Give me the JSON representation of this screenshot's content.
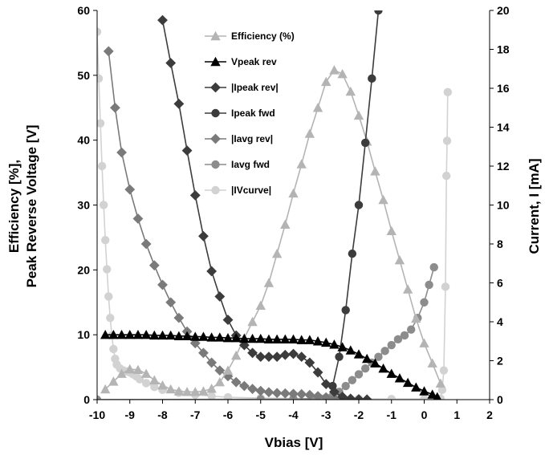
{
  "chart_data": {
    "type": "line",
    "xlabel": "Vbias [V]",
    "ylabel_left_line1": "Efficiency [%],",
    "ylabel_left_line2": "Peak Reverse Voltage [V]",
    "ylabel_right": "Current, I [mA]",
    "xlim": [
      -10,
      2
    ],
    "ylim_left": [
      0,
      60
    ],
    "ylim_right": [
      0,
      20
    ],
    "x_ticks": [
      "-10",
      "-9",
      "-8",
      "-7",
      "-6",
      "-5",
      "-4",
      "-3",
      "-2",
      "-1",
      "0",
      "1",
      "2"
    ],
    "y_left_ticks": [
      "0",
      "10",
      "20",
      "30",
      "40",
      "50",
      "60"
    ],
    "y_right_ticks": [
      "0",
      "2",
      "4",
      "6",
      "8",
      "10",
      "12",
      "14",
      "16",
      "18",
      "20"
    ],
    "legend_position": "top-center",
    "series": [
      {
        "name": "Efficiency (%)",
        "axis": "left",
        "marker": "triangle",
        "color": "#b4b4b4",
        "points": [
          [
            -9.75,
            1.6
          ],
          [
            -9.5,
            2.8
          ],
          [
            -9.25,
            4.0
          ],
          [
            -9.0,
            4.7
          ],
          [
            -8.75,
            4.6
          ],
          [
            -8.5,
            4.0
          ],
          [
            -8.25,
            3.0
          ],
          [
            -8.0,
            2.2
          ],
          [
            -7.75,
            1.6
          ],
          [
            -7.5,
            1.3
          ],
          [
            -7.25,
            1.2
          ],
          [
            -7.0,
            1.2
          ],
          [
            -6.75,
            1.3
          ],
          [
            -6.5,
            1.7
          ],
          [
            -6.25,
            2.7
          ],
          [
            -6.0,
            4.5
          ],
          [
            -5.75,
            6.8
          ],
          [
            -5.5,
            9.5
          ],
          [
            -5.25,
            12.0
          ],
          [
            -5.0,
            14.5
          ],
          [
            -4.75,
            18.0
          ],
          [
            -4.5,
            22.5
          ],
          [
            -4.25,
            27.0
          ],
          [
            -4.0,
            31.8
          ],
          [
            -3.75,
            36.3
          ],
          [
            -3.5,
            41.0
          ],
          [
            -3.25,
            45.0
          ],
          [
            -3.0,
            49.0
          ],
          [
            -2.75,
            50.8
          ],
          [
            -2.5,
            50.2
          ],
          [
            -2.25,
            47.5
          ],
          [
            -2.0,
            43.8
          ],
          [
            -1.75,
            39.8
          ],
          [
            -1.5,
            35.2
          ],
          [
            -1.25,
            30.8
          ],
          [
            -1.0,
            26.0
          ],
          [
            -0.75,
            21.5
          ],
          [
            -0.5,
            17.0
          ],
          [
            -0.25,
            12.5
          ],
          [
            0.0,
            8.7
          ],
          [
            0.25,
            5.6
          ],
          [
            0.5,
            2.5
          ]
        ]
      },
      {
        "name": "Vpeak rev",
        "axis": "left",
        "marker": "triangle",
        "color": "#000000",
        "points": [
          [
            -9.75,
            10.0
          ],
          [
            -9.5,
            10.0
          ],
          [
            -9.25,
            10.0
          ],
          [
            -9.0,
            10.0
          ],
          [
            -8.75,
            10.0
          ],
          [
            -8.5,
            10.0
          ],
          [
            -8.25,
            9.9
          ],
          [
            -8.0,
            9.9
          ],
          [
            -7.75,
            9.9
          ],
          [
            -7.5,
            9.8
          ],
          [
            -7.25,
            9.8
          ],
          [
            -7.0,
            9.7
          ],
          [
            -6.75,
            9.7
          ],
          [
            -6.5,
            9.6
          ],
          [
            -6.25,
            9.6
          ],
          [
            -6.0,
            9.5
          ],
          [
            -5.75,
            9.5
          ],
          [
            -5.5,
            9.4
          ],
          [
            -5.25,
            9.4
          ],
          [
            -5.0,
            9.4
          ],
          [
            -4.75,
            9.3
          ],
          [
            -4.5,
            9.3
          ],
          [
            -4.25,
            9.3
          ],
          [
            -4.0,
            9.3
          ],
          [
            -3.75,
            9.2
          ],
          [
            -3.5,
            9.2
          ],
          [
            -3.25,
            9.0
          ],
          [
            -3.0,
            8.8
          ],
          [
            -2.75,
            8.5
          ],
          [
            -2.5,
            8.1
          ],
          [
            -2.25,
            7.6
          ],
          [
            -2.0,
            7.0
          ],
          [
            -1.75,
            6.3
          ],
          [
            -1.5,
            5.6
          ],
          [
            -1.25,
            4.8
          ],
          [
            -1.0,
            4.0
          ],
          [
            -0.75,
            3.3
          ],
          [
            -0.5,
            2.6
          ],
          [
            -0.25,
            1.9
          ],
          [
            0.0,
            1.3
          ],
          [
            0.25,
            0.8
          ],
          [
            0.4,
            0.4
          ]
        ]
      },
      {
        "name": "|Ipeak rev|",
        "axis": "right",
        "marker": "diamond",
        "color": "#3c3c3c",
        "points": [
          [
            -8.0,
            19.5
          ],
          [
            -7.75,
            17.3
          ],
          [
            -7.5,
            15.2
          ],
          [
            -7.25,
            12.8
          ],
          [
            -7.0,
            10.5
          ],
          [
            -6.75,
            8.4
          ],
          [
            -6.5,
            6.6
          ],
          [
            -6.25,
            5.3
          ],
          [
            -6.0,
            4.1
          ],
          [
            -5.75,
            3.3
          ],
          [
            -5.5,
            2.8
          ],
          [
            -5.25,
            2.4
          ],
          [
            -5.0,
            2.2
          ],
          [
            -4.75,
            2.2
          ],
          [
            -4.5,
            2.2
          ],
          [
            -4.25,
            2.3
          ],
          [
            -4.0,
            2.35
          ],
          [
            -3.75,
            2.2
          ],
          [
            -3.5,
            1.9
          ],
          [
            -3.25,
            1.4
          ],
          [
            -3.0,
            0.8
          ],
          [
            -2.75,
            0.4
          ],
          [
            -2.5,
            0.15
          ],
          [
            -2.25,
            0.05
          ],
          [
            -2.0,
            0.02
          ],
          [
            -1.75,
            0.01
          ]
        ]
      },
      {
        "name": "Ipeak fwd",
        "axis": "right",
        "marker": "circle",
        "color": "#3c3c3c",
        "points": [
          [
            -2.8,
            0.7
          ],
          [
            -2.6,
            2.2
          ],
          [
            -2.4,
            4.6
          ],
          [
            -2.2,
            7.5
          ],
          [
            -2.0,
            10.0
          ],
          [
            -1.8,
            13.2
          ],
          [
            -1.6,
            16.5
          ],
          [
            -1.4,
            20.0
          ]
        ]
      },
      {
        "name": "|Iavg rev|",
        "axis": "right",
        "marker": "diamond",
        "color": "#7a7a7a",
        "points": [
          [
            -9.65,
            17.9
          ],
          [
            -9.45,
            15.0
          ],
          [
            -9.25,
            12.7
          ],
          [
            -9.0,
            10.8
          ],
          [
            -8.75,
            9.3
          ],
          [
            -8.5,
            8.0
          ],
          [
            -8.25,
            6.9
          ],
          [
            -8.0,
            5.9
          ],
          [
            -7.75,
            5.0
          ],
          [
            -7.5,
            4.2
          ],
          [
            -7.25,
            3.5
          ],
          [
            -7.0,
            2.9
          ],
          [
            -6.75,
            2.4
          ],
          [
            -6.5,
            1.9
          ],
          [
            -6.25,
            1.5
          ],
          [
            -6.0,
            1.2
          ],
          [
            -5.75,
            0.9
          ],
          [
            -5.5,
            0.7
          ],
          [
            -5.25,
            0.55
          ],
          [
            -5.0,
            0.45
          ],
          [
            -4.75,
            0.38
          ],
          [
            -4.5,
            0.34
          ],
          [
            -4.25,
            0.32
          ],
          [
            -4.0,
            0.3
          ],
          [
            -3.75,
            0.28
          ],
          [
            -3.5,
            0.24
          ],
          [
            -3.25,
            0.18
          ],
          [
            -3.0,
            0.12
          ],
          [
            -2.75,
            0.07
          ],
          [
            -2.5,
            0.03
          ]
        ]
      },
      {
        "name": "Iavg fwd",
        "axis": "right",
        "marker": "circle",
        "color": "#8c8c8c",
        "points": [
          [
            -10.0,
            0.0
          ],
          [
            -5.0,
            0.02
          ],
          [
            -4.0,
            0.03
          ],
          [
            -3.4,
            0.05
          ],
          [
            -3.2,
            0.08
          ],
          [
            -3.0,
            0.1
          ],
          [
            -2.8,
            0.2
          ],
          [
            -2.6,
            0.4
          ],
          [
            -2.4,
            0.7
          ],
          [
            -2.2,
            1.0
          ],
          [
            -2.0,
            1.3
          ],
          [
            -1.8,
            1.6
          ],
          [
            -1.6,
            1.9
          ],
          [
            -1.4,
            2.2
          ],
          [
            -1.2,
            2.5
          ],
          [
            -1.0,
            2.8
          ],
          [
            -0.8,
            3.1
          ],
          [
            -0.6,
            3.3
          ],
          [
            -0.4,
            3.6
          ],
          [
            -0.2,
            4.2
          ],
          [
            0.0,
            5.0
          ],
          [
            0.15,
            5.9
          ],
          [
            0.3,
            6.8
          ]
        ]
      },
      {
        "name": "|IVcurve|",
        "axis": "right",
        "marker": "circle",
        "color": "#d2d2d2",
        "points": [
          [
            -10.0,
            18.9
          ],
          [
            -9.95,
            16.5
          ],
          [
            -9.9,
            14.2
          ],
          [
            -9.85,
            12.0
          ],
          [
            -9.8,
            10.0
          ],
          [
            -9.75,
            8.2
          ],
          [
            -9.7,
            6.7
          ],
          [
            -9.65,
            5.3
          ],
          [
            -9.6,
            4.2
          ],
          [
            -9.55,
            3.3
          ],
          [
            -9.5,
            2.6
          ],
          [
            -9.45,
            2.1
          ],
          [
            -9.4,
            1.8
          ],
          [
            -9.3,
            1.6
          ],
          [
            -9.2,
            1.5
          ],
          [
            -9.1,
            1.45
          ],
          [
            -9.0,
            1.4
          ],
          [
            -8.9,
            1.3
          ],
          [
            -8.8,
            1.2
          ],
          [
            -8.7,
            1.05
          ],
          [
            -8.5,
            0.85
          ],
          [
            -8.25,
            0.65
          ],
          [
            -8.0,
            0.5
          ],
          [
            -7.5,
            0.35
          ],
          [
            -7.0,
            0.25
          ],
          [
            -6.5,
            0.18
          ],
          [
            -6.0,
            0.12
          ],
          [
            -5.0,
            0.08
          ],
          [
            -4.0,
            0.06
          ],
          [
            -3.0,
            0.05
          ],
          [
            -2.0,
            0.04
          ],
          [
            -1.0,
            0.03
          ],
          [
            0.0,
            0.03
          ],
          [
            0.5,
            0.05
          ],
          [
            0.55,
            0.5
          ],
          [
            0.6,
            1.5
          ],
          [
            0.65,
            5.8
          ],
          [
            0.68,
            11.5
          ],
          [
            0.7,
            13.3
          ],
          [
            0.72,
            15.8
          ]
        ]
      }
    ]
  }
}
